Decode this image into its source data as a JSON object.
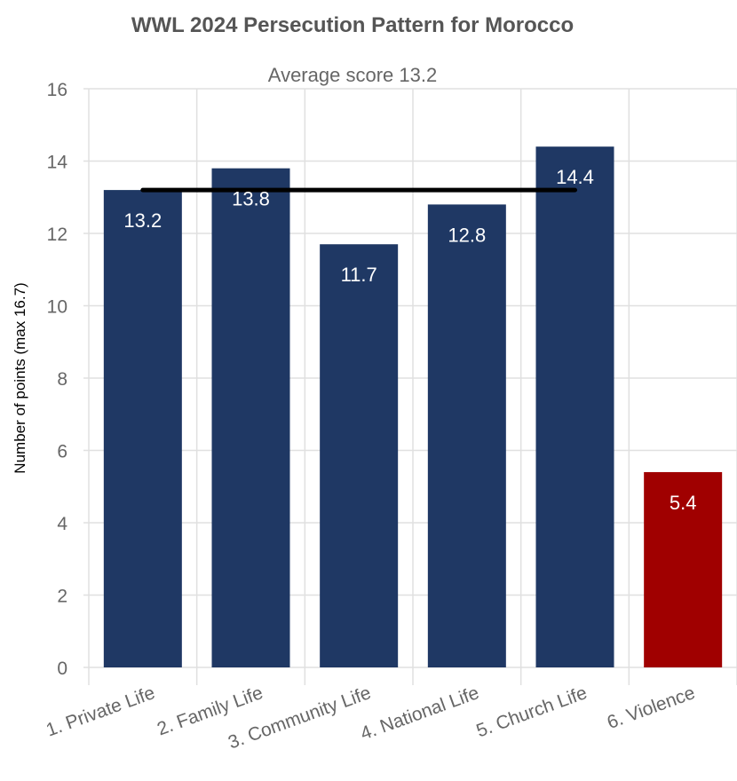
{
  "chart_data": {
    "type": "bar",
    "title": "WWL 2024 Persecution Pattern for Morocco",
    "subtitle": "Average score 13.2",
    "xlabel": "",
    "ylabel": "Number of points (max 16.7)",
    "categories": [
      "1. Private Life",
      "2. Family Life",
      "3. Community Life",
      "4. National Life",
      "5. Church Life",
      "6. Violence"
    ],
    "values": [
      13.2,
      13.8,
      11.7,
      12.8,
      14.4,
      5.4
    ],
    "data_labels": [
      "13.2",
      "13.8",
      "11.7",
      "12.8",
      "14.4",
      "5.4"
    ],
    "bar_colors": [
      "#1f3864",
      "#1f3864",
      "#1f3864",
      "#1f3864",
      "#1f3864",
      "#a00000"
    ],
    "ylim": [
      0,
      16
    ],
    "yticks": [
      0,
      2,
      4,
      6,
      8,
      10,
      12,
      14,
      16
    ],
    "average_line": {
      "value": 13.2,
      "from_category": 0,
      "to_category": 4,
      "color": "#000000"
    },
    "grid": true,
    "legend": "none"
  }
}
